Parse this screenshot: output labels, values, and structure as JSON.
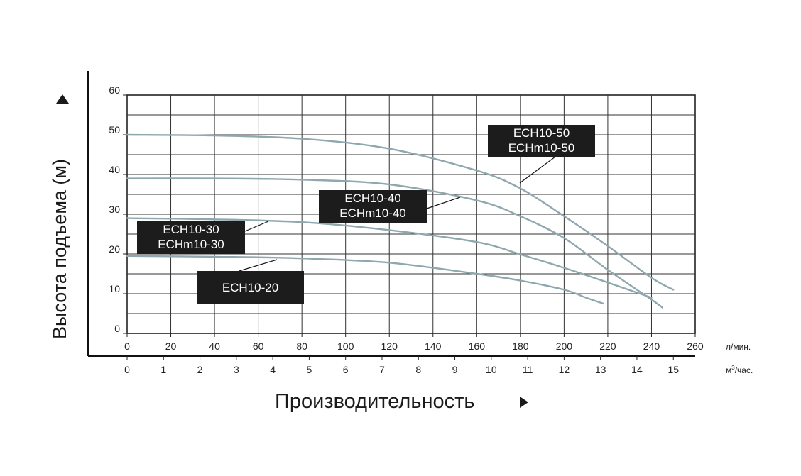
{
  "chart_data": {
    "type": "line",
    "xlabel": "Производительность",
    "ylabel": "Высота подъема (м)",
    "x_unit_primary": "л/мин.",
    "x_unit_secondary_base": "м",
    "x_unit_secondary_exp": "3",
    "x_unit_secondary_tail": "/час.",
    "xlim": [
      0,
      260
    ],
    "ylim": [
      0,
      60
    ],
    "x_ticks_primary": [
      "0",
      "20",
      "40",
      "60",
      "80",
      "100",
      "120",
      "140",
      "160",
      "180",
      "200",
      "220",
      "240",
      "260"
    ],
    "x_ticks_secondary": [
      "0",
      "1",
      "2",
      "3",
      "4",
      "5",
      "6",
      "7",
      "8",
      "9",
      "10",
      "11",
      "12",
      "13",
      "14",
      "15"
    ],
    "y_ticks": [
      "0",
      "10",
      "20",
      "30",
      "40",
      "50",
      "60"
    ],
    "grid": true,
    "line_color": "#8fa7ae",
    "series": [
      {
        "label_lines": [
          "ECH10-50",
          "ECHm10-50"
        ],
        "points": [
          [
            0,
            50
          ],
          [
            40,
            49.8
          ],
          [
            80,
            49
          ],
          [
            120,
            46.5
          ],
          [
            160,
            41
          ],
          [
            180,
            36.5
          ],
          [
            200,
            29.5
          ],
          [
            220,
            22
          ],
          [
            240,
            14
          ],
          [
            250,
            11
          ]
        ]
      },
      {
        "label_lines": [
          "ECH10-40",
          "ECHm10-40"
        ],
        "points": [
          [
            0,
            39
          ],
          [
            40,
            39
          ],
          [
            80,
            38.7
          ],
          [
            120,
            37.5
          ],
          [
            160,
            33.5
          ],
          [
            180,
            29.5
          ],
          [
            200,
            24
          ],
          [
            220,
            16
          ],
          [
            240,
            8.5
          ],
          [
            245,
            6.5
          ]
        ]
      },
      {
        "label_lines": [
          "ECH10-30",
          "ECHm10-30"
        ],
        "points": [
          [
            0,
            29
          ],
          [
            40,
            28.7
          ],
          [
            80,
            28
          ],
          [
            120,
            26
          ],
          [
            160,
            23
          ],
          [
            180,
            19.9
          ],
          [
            200,
            16.5
          ],
          [
            220,
            12.8
          ],
          [
            240,
            9
          ]
        ]
      },
      {
        "label_lines": [
          "ECH10-20"
        ],
        "points": [
          [
            0,
            19.5
          ],
          [
            40,
            19.3
          ],
          [
            80,
            18.9
          ],
          [
            120,
            17.8
          ],
          [
            160,
            15
          ],
          [
            180,
            13.3
          ],
          [
            200,
            11
          ],
          [
            210,
            9
          ],
          [
            218,
            7.5
          ]
        ]
      }
    ]
  }
}
